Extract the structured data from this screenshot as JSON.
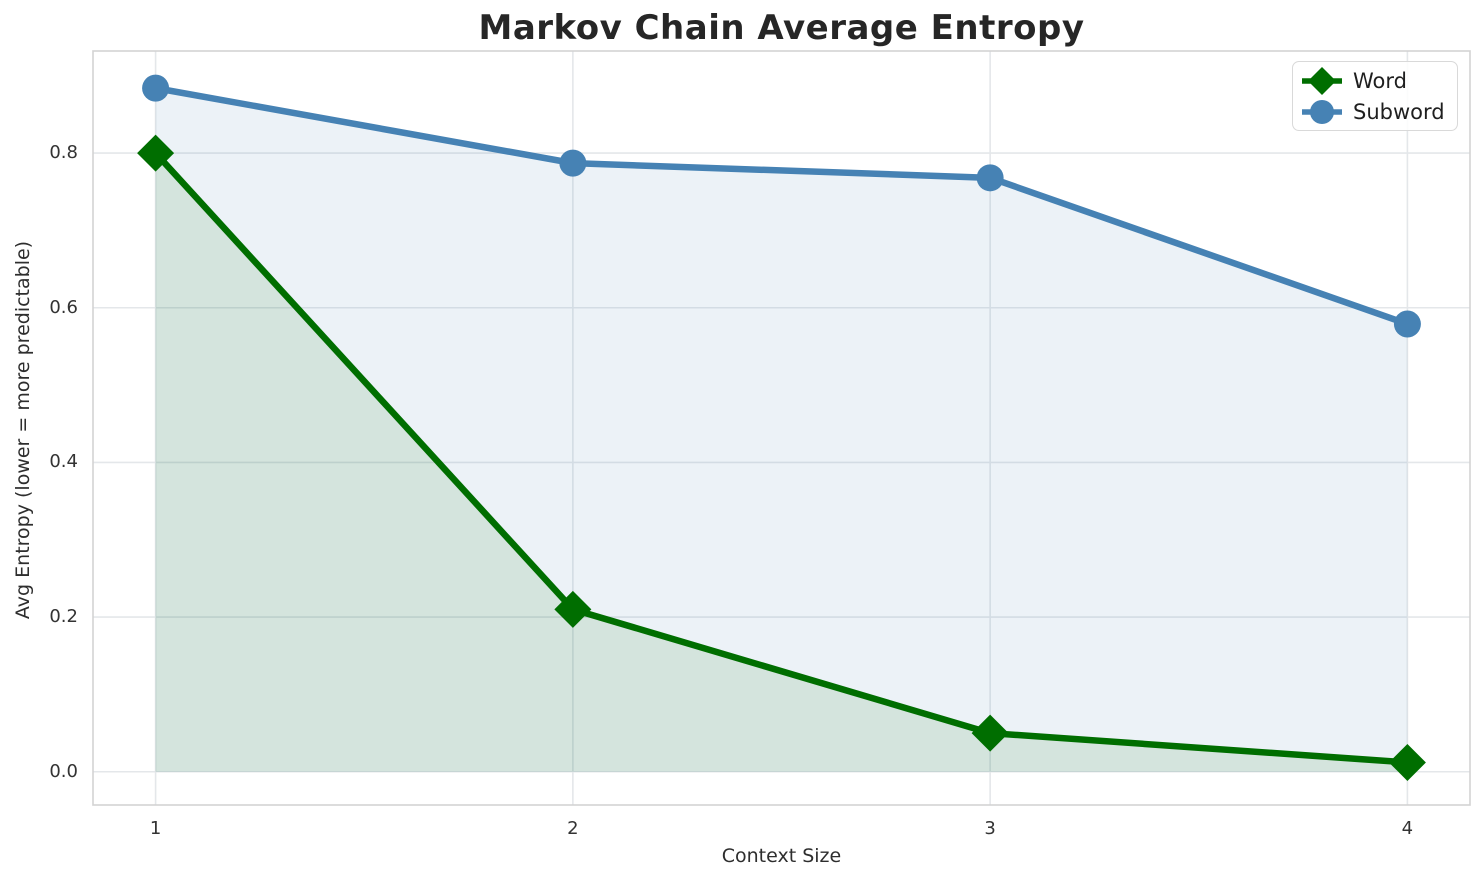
{
  "chart_data": {
    "type": "line",
    "title": "Markov Chain Average Entropy",
    "xlabel": "Context Size",
    "ylabel": "Avg Entropy (lower = more predictable)",
    "x": [
      1,
      2,
      3,
      4
    ],
    "series": [
      {
        "name": "Word",
        "values": [
          0.8,
          0.21,
          0.05,
          0.012
        ],
        "color": "#006e00",
        "marker": "diamond",
        "area_fill": true
      },
      {
        "name": "Subword",
        "values": [
          0.884,
          0.787,
          0.768,
          0.579
        ],
        "color": "#4682b4",
        "marker": "circle",
        "area_fill": true
      }
    ],
    "xticks": [
      "1",
      "2",
      "3",
      "4"
    ],
    "yticks": [
      "0.0",
      "0.2",
      "0.4",
      "0.6",
      "0.8"
    ],
    "xlim": [
      0.85,
      4.15
    ],
    "ylim": [
      -0.043,
      0.932
    ],
    "grid": true,
    "grid_color": "#e4e7ea",
    "spine_color": "#d3d3d3",
    "fill_alpha": 0.1,
    "fill_baseline": 0,
    "legend_position": "upper right"
  }
}
